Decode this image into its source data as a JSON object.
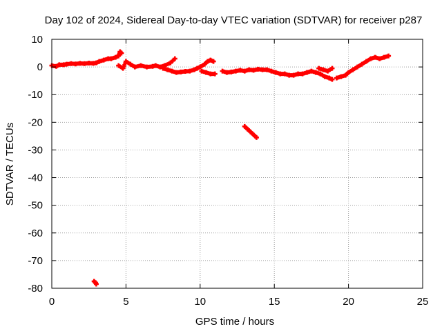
{
  "chart_data": {
    "type": "scatter",
    "title": "Day 102 of 2024, Sidereal Day-to-day VTEC variation (SDTVAR) for receiver p287",
    "xlabel": "GPS time / hours",
    "ylabel": "SDTVAR / TECUs",
    "xlim": [
      0,
      25
    ],
    "ylim": [
      -80,
      10
    ],
    "xticks": [
      0,
      5,
      10,
      15,
      20,
      25
    ],
    "yticks": [
      10,
      0,
      -10,
      -20,
      -30,
      -40,
      -50,
      -60,
      -70,
      -80
    ],
    "grid": true,
    "legend": "none",
    "colors": {
      "series": "#ff0000",
      "grid": "#a0a0a0",
      "axis": "#000000"
    },
    "series": [
      {
        "name": "SDTVAR",
        "marker": "plus",
        "x": [
          0.0,
          0.3,
          0.5,
          0.8,
          1.0,
          1.3,
          1.6,
          1.9,
          2.2,
          2.5,
          2.8,
          3.0,
          3.2,
          3.5,
          3.8,
          4.0,
          4.3,
          4.5,
          4.6,
          4.7,
          4.5,
          4.8,
          5.0,
          5.3,
          5.6,
          6.0,
          6.4,
          6.8,
          7.0,
          7.3,
          7.6,
          8.0,
          8.3,
          7.5,
          7.8,
          8.1,
          8.4,
          8.7,
          9.0,
          9.3,
          9.6,
          9.8,
          10.0,
          10.3,
          10.5,
          10.7,
          10.9,
          10.1,
          10.4,
          10.7,
          11.0,
          11.5,
          11.8,
          12.1,
          12.4,
          12.7,
          13.0,
          13.3,
          13.6,
          13.9,
          14.2,
          14.5,
          14.8,
          15.1,
          15.4,
          15.7,
          16.0,
          16.3,
          16.6,
          16.9,
          17.2,
          17.5,
          17.8,
          18.1,
          18.4,
          18.7,
          18.9,
          18.0,
          18.3,
          18.6,
          18.9,
          19.2,
          19.5,
          19.8,
          20.0,
          20.3,
          20.6,
          20.9,
          21.2,
          21.5,
          21.8,
          22.1,
          22.4,
          22.7,
          13.0,
          13.2,
          13.4,
          13.6,
          13.8,
          2.85,
          2.95,
          3.0
        ],
        "y": [
          0.5,
          0.2,
          0.8,
          0.8,
          1.0,
          1.2,
          1.1,
          1.3,
          1.2,
          1.4,
          1.3,
          1.5,
          2.0,
          2.5,
          3.0,
          3.0,
          3.5,
          4.0,
          5.5,
          5.0,
          0.5,
          -0.5,
          2.0,
          1.0,
          0.0,
          0.5,
          0.0,
          0.2,
          0.5,
          0.0,
          0.5,
          1.5,
          3.0,
          -0.5,
          -1.0,
          -1.5,
          -2.0,
          -1.8,
          -1.6,
          -1.5,
          -1.0,
          -0.5,
          0.0,
          1.0,
          2.0,
          2.5,
          2.0,
          -1.5,
          -2.0,
          -2.5,
          -2.5,
          -1.5,
          -2.0,
          -1.8,
          -1.5,
          -1.2,
          -1.5,
          -1.0,
          -1.2,
          -0.8,
          -1.0,
          -1.0,
          -1.5,
          -2.0,
          -2.5,
          -2.5,
          -3.0,
          -3.0,
          -2.5,
          -2.5,
          -2.0,
          -1.5,
          -2.0,
          -2.5,
          -3.5,
          -4.0,
          -4.5,
          -0.5,
          -1.0,
          -1.5,
          -0.5,
          -4.0,
          -3.5,
          -3.0,
          -2.0,
          -1.0,
          0.0,
          1.0,
          2.0,
          3.0,
          3.5,
          3.0,
          3.5,
          4.0,
          -21.5,
          -22.5,
          -23.5,
          -24.5,
          -25.5,
          -77.5,
          -78.0,
          -78.5
        ]
      }
    ]
  }
}
